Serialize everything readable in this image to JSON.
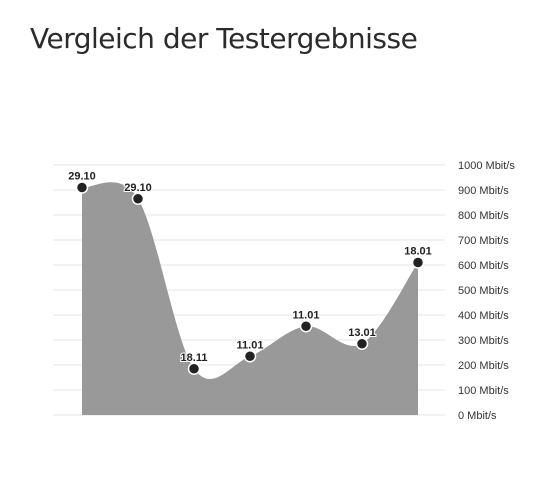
{
  "title": "Vergleich der Testergebnisse",
  "colors": {
    "area": "#999999",
    "grid": "#e6e6e6",
    "point": "#222222",
    "point_stroke": "#ffffff"
  },
  "chart_data": {
    "type": "area",
    "title": "Vergleich der Testergebnisse",
    "x": [
      1,
      2,
      3,
      4,
      5,
      6,
      7
    ],
    "values": [
      910,
      865,
      185,
      235,
      355,
      285,
      610
    ],
    "point_labels": [
      "29.10",
      "29.10",
      "18.11",
      "11.01",
      "11.01",
      "13.01",
      "18.01"
    ],
    "y_ticks": [
      "0 Mbit/s",
      "100 Mbit/s",
      "200 Mbit/s",
      "300 Mbit/s",
      "400 Mbit/s",
      "500 Mbit/s",
      "600 Mbit/s",
      "700 Mbit/s",
      "800 Mbit/s",
      "900 Mbit/s",
      "1000 Mbit/s"
    ],
    "y_unit": "Mbit/s",
    "ylim": [
      0,
      1000
    ],
    "grid": true,
    "legend": false,
    "y_axis_position": "right"
  }
}
